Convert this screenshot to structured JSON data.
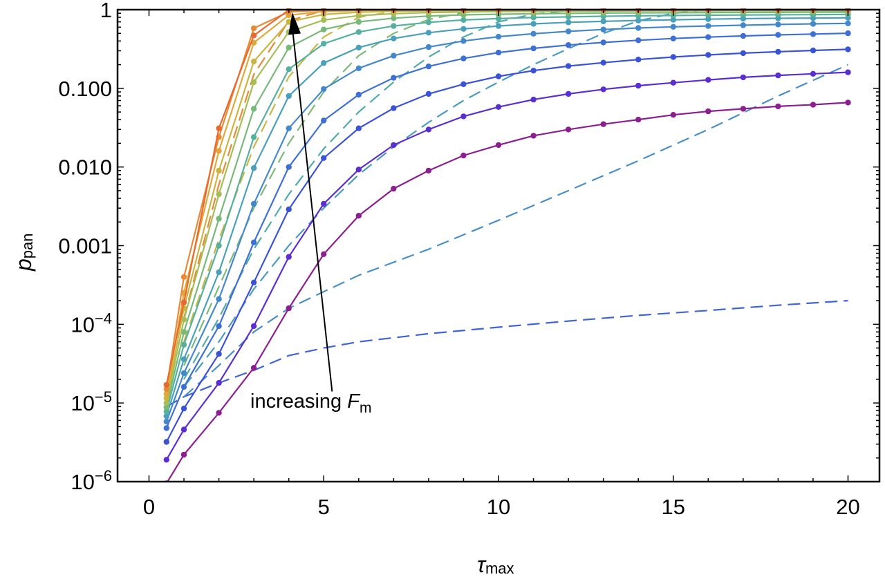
{
  "chart_data": {
    "type": "line",
    "xlabel": {
      "symbol": "τ",
      "sub": "max"
    },
    "ylabel": {
      "symbol": "p",
      "sub": "pan"
    },
    "xlim": [
      -0.9,
      20.9
    ],
    "ylim": [
      1e-06,
      1
    ],
    "yscale": "log",
    "grid": false,
    "x_ticks": [
      {
        "value": 0,
        "label": "0"
      },
      {
        "value": 5,
        "label": "5"
      },
      {
        "value": 10,
        "label": "10"
      },
      {
        "value": 15,
        "label": "15"
      },
      {
        "value": 20,
        "label": "20"
      }
    ],
    "y_ticks": [
      {
        "value": 1e-06,
        "base": "10",
        "exp": "−6"
      },
      {
        "value": 1e-05,
        "base": "10",
        "exp": "−5"
      },
      {
        "value": 0.0001,
        "base": "10",
        "exp": "−4"
      },
      {
        "value": 0.001,
        "label": "0.001"
      },
      {
        "value": 0.01,
        "label": "0.010"
      },
      {
        "value": 0.1,
        "label": "0.100"
      },
      {
        "value": 1,
        "label": "1"
      }
    ],
    "annotation": {
      "text": "increasing ",
      "symbol": "F",
      "sub": "m",
      "arrow_from": [
        5.2,
        1.4e-05
      ],
      "arrow_to": [
        4.1,
        0.93
      ]
    },
    "x": [
      0.5,
      1,
      2,
      3,
      4,
      5,
      6,
      7,
      8,
      9,
      10,
      11,
      12,
      13,
      14,
      15,
      16,
      17,
      18,
      19,
      20
    ],
    "series": [
      {
        "color": "#8b1f8f",
        "values": [
          9.5e-07,
          2.2e-06,
          7.5e-06,
          2.8e-05,
          0.00016,
          0.00078,
          0.0024,
          0.0053,
          0.009,
          0.014,
          0.019,
          0.025,
          0.03,
          0.035,
          0.04,
          0.046,
          0.051,
          0.055,
          0.059,
          0.062,
          0.066
        ]
      },
      {
        "color": "#5b2ecf",
        "values": [
          1.9e-06,
          4.6e-06,
          1.8e-05,
          9.5e-05,
          0.00072,
          0.0034,
          0.0093,
          0.019,
          0.03,
          0.044,
          0.058,
          0.072,
          0.085,
          0.097,
          0.108,
          0.118,
          0.128,
          0.138,
          0.146,
          0.153,
          0.16
        ]
      },
      {
        "color": "#3a52d6",
        "values": [
          3.2e-06,
          8.5e-06,
          4.2e-05,
          0.00034,
          0.0029,
          0.013,
          0.031,
          0.056,
          0.085,
          0.113,
          0.142,
          0.168,
          0.192,
          0.212,
          0.232,
          0.25,
          0.266,
          0.28,
          0.292,
          0.303,
          0.313
        ]
      },
      {
        "color": "#3e6fd4",
        "values": [
          4.8e-06,
          1.6e-05,
          9.5e-05,
          0.0011,
          0.01,
          0.039,
          0.083,
          0.136,
          0.19,
          0.24,
          0.285,
          0.322,
          0.355,
          0.383,
          0.408,
          0.43,
          0.448,
          0.464,
          0.478,
          0.49,
          0.502
        ]
      },
      {
        "color": "#4488cc",
        "values": [
          5.8e-06,
          2.4e-05,
          0.00021,
          0.0034,
          0.031,
          0.098,
          0.18,
          0.26,
          0.335,
          0.4,
          0.453,
          0.495,
          0.53,
          0.56,
          0.585,
          0.605,
          0.62,
          0.635,
          0.648,
          0.66,
          0.67
        ]
      },
      {
        "color": "#4aa0bb",
        "values": [
          6.8e-06,
          3.6e-05,
          0.00046,
          0.0097,
          0.08,
          0.21,
          0.33,
          0.43,
          0.51,
          0.57,
          0.62,
          0.66,
          0.69,
          0.71,
          0.73,
          0.745,
          0.758,
          0.768,
          0.776,
          0.782,
          0.788
        ]
      },
      {
        "color": "#55b0a0",
        "values": [
          7.8e-06,
          5.5e-05,
          0.001,
          0.024,
          0.175,
          0.37,
          0.52,
          0.62,
          0.69,
          0.74,
          0.77,
          0.795,
          0.81,
          0.825,
          0.835,
          0.843,
          0.85,
          0.856,
          0.861,
          0.865,
          0.869
        ]
      },
      {
        "color": "#78b878",
        "values": [
          8.8e-06,
          8e-05,
          0.0022,
          0.055,
          0.33,
          0.56,
          0.7,
          0.78,
          0.83,
          0.86,
          0.875,
          0.888,
          0.898,
          0.905,
          0.91,
          0.915,
          0.919,
          0.922,
          0.925,
          0.927,
          0.929
        ]
      },
      {
        "color": "#a5bd55",
        "values": [
          1e-05,
          0.000115,
          0.0045,
          0.12,
          0.52,
          0.74,
          0.84,
          0.89,
          0.92,
          0.935,
          0.945,
          0.952,
          0.957,
          0.961,
          0.964,
          0.966,
          0.968,
          0.97,
          0.971,
          0.972,
          0.973
        ]
      },
      {
        "color": "#c9b540",
        "values": [
          1.15e-05,
          0.00016,
          0.009,
          0.22,
          0.7,
          0.87,
          0.93,
          0.955,
          0.967,
          0.974,
          0.979,
          0.982,
          0.984,
          0.986,
          0.987,
          0.988,
          0.989,
          0.99,
          0.99,
          0.991,
          0.991
        ]
      },
      {
        "color": "#e0a83a",
        "values": [
          1.3e-05,
          0.00025,
          0.016,
          0.38,
          0.85,
          0.95,
          0.975,
          0.985,
          0.99,
          0.992,
          0.994,
          0.995,
          0.996,
          0.996,
          0.997,
          0.997,
          0.997,
          0.998,
          0.998,
          0.998,
          0.998
        ]
      },
      {
        "color": "#e88a35",
        "values": [
          1.5e-05,
          0.0004,
          0.024,
          0.58,
          0.94,
          0.985,
          0.993,
          0.996,
          0.997,
          0.998,
          0.998,
          0.999,
          0.999,
          0.999,
          0.999,
          0.999,
          0.999,
          0.999,
          0.999,
          0.999,
          0.999
        ]
      },
      {
        "color": "#e8692f",
        "values": [
          1.7e-05,
          0.00019,
          0.031,
          0.47,
          0.99,
          1,
          1,
          1,
          1,
          1,
          1,
          1,
          1,
          1,
          1,
          1,
          1,
          1,
          1,
          1,
          1
        ]
      }
    ],
    "dashed_series": [
      {
        "color": "#3f63d8",
        "x": [
          0.5,
          1,
          2,
          3,
          4,
          5,
          6,
          8,
          10,
          12,
          14,
          16,
          18,
          20
        ],
        "values": [
          9e-06,
          1.2e-05,
          1.8e-05,
          2.6e-05,
          4e-05,
          5e-05,
          6e-05,
          7.6e-05,
          9.2e-05,
          0.00011,
          0.00013,
          0.00015,
          0.000175,
          0.0002
        ]
      },
      {
        "color": "#4a8ec8",
        "x": [
          1,
          2,
          3,
          4,
          5,
          6,
          8,
          10,
          12,
          14,
          16,
          18,
          20
        ],
        "values": [
          1.2e-05,
          3e-05,
          8e-05,
          0.00016,
          0.00026,
          0.00042,
          0.0009,
          0.0021,
          0.005,
          0.012,
          0.03,
          0.08,
          0.2
        ]
      },
      {
        "color": "#4a9bc0",
        "x": [
          1,
          2,
          3,
          4,
          5,
          6,
          7,
          8,
          9,
          10,
          11,
          12,
          13,
          14,
          15,
          16,
          17,
          18,
          19,
          20
        ],
        "values": [
          1.6e-05,
          6e-05,
          0.00028,
          0.001,
          0.003,
          0.008,
          0.018,
          0.037,
          0.07,
          0.12,
          0.2,
          0.32,
          0.5,
          0.72,
          0.9,
          1,
          1,
          1,
          1,
          1
        ]
      },
      {
        "color": "#52aaa8",
        "x": [
          1,
          2,
          3,
          4,
          5,
          6,
          7,
          8,
          9,
          10,
          11,
          12,
          13,
          14,
          15,
          16,
          17,
          18,
          19,
          20
        ],
        "values": [
          2e-05,
          0.00012,
          0.0009,
          0.0045,
          0.017,
          0.05,
          0.12,
          0.25,
          0.45,
          0.7,
          0.88,
          0.97,
          1,
          1,
          1,
          1,
          1,
          1,
          1,
          1
        ]
      },
      {
        "color": "#7dba78",
        "x": [
          1,
          2,
          3,
          4,
          5,
          6,
          7,
          8,
          9,
          10,
          11,
          12,
          13,
          14,
          15,
          16,
          17,
          18,
          19,
          20
        ],
        "values": [
          3e-05,
          0.0003,
          0.003,
          0.02,
          0.09,
          0.26,
          0.5,
          0.75,
          0.92,
          0.98,
          1,
          1,
          1,
          1,
          1,
          1,
          1,
          1,
          1,
          1
        ]
      },
      {
        "color": "#c8b646",
        "x": [
          1,
          2,
          3,
          4,
          5,
          6,
          7,
          8,
          9,
          10,
          11,
          12,
          13,
          14,
          15,
          16,
          17,
          18,
          19,
          20
        ],
        "values": [
          6e-05,
          0.0012,
          0.018,
          0.14,
          0.45,
          0.8,
          0.95,
          0.99,
          1,
          1,
          1,
          1,
          1,
          1,
          1,
          1,
          1,
          1,
          1,
          1
        ]
      },
      {
        "color": "#e58a36",
        "x": [
          1,
          2,
          3,
          4,
          5,
          6,
          7,
          8,
          9,
          10,
          11,
          12,
          13,
          14,
          15,
          16,
          17,
          18,
          19,
          20
        ],
        "values": [
          0.00012,
          0.006,
          0.15,
          0.72,
          0.98,
          1,
          1,
          1,
          1,
          1,
          1,
          1,
          1,
          1,
          1,
          1,
          1,
          1,
          1,
          1
        ]
      }
    ]
  }
}
